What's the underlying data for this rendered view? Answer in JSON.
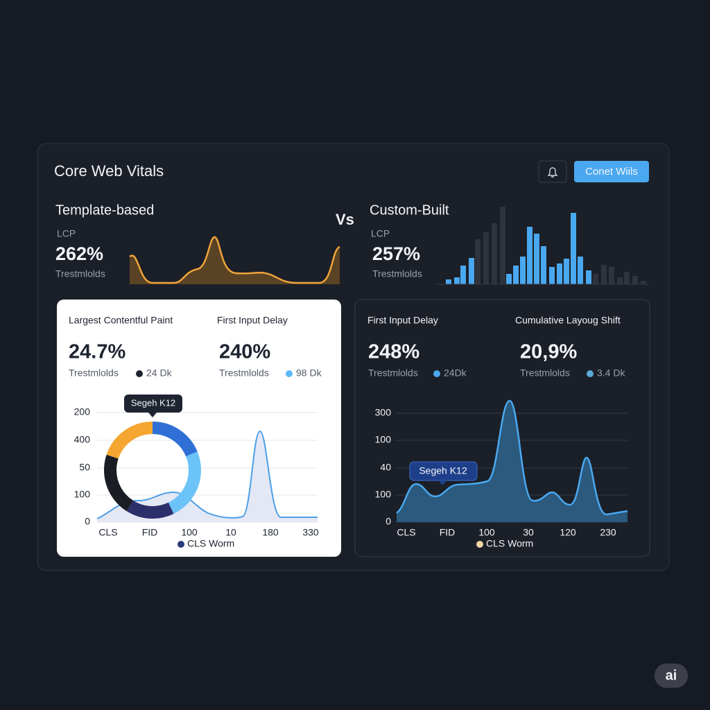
{
  "header": {
    "title": "Core Web Vitals",
    "button": "Conet Wiils"
  },
  "vs": "Vs",
  "left_summary": {
    "title": "Template-based",
    "metric": "LCP",
    "value": "262%",
    "note": "Trestmlolds"
  },
  "right_summary": {
    "title": "Custom-Built",
    "metric": "LCP",
    "value": "257%",
    "note": "Trestmlolds"
  },
  "left_card": {
    "metrics": [
      {
        "label": "Largest Contentful Paint",
        "value": "24.7%",
        "note": "Trestmlolds",
        "legend": "24 Dk"
      },
      {
        "label": "First Input Delay",
        "value": "240%",
        "note": "Trestmlolds",
        "legend": "98 Dk"
      }
    ],
    "tooltip": "Segeh K12",
    "y_labels": [
      "200",
      "400",
      "50",
      "100",
      "0"
    ],
    "x_labels": [
      "CLS",
      "FID",
      "100",
      "10",
      "180",
      "330"
    ],
    "legend": "CLS Worm"
  },
  "right_card": {
    "metrics": [
      {
        "label": "First Input Delay",
        "value": "248%",
        "note": "Trestmlolds",
        "legend": "24Dk"
      },
      {
        "label": "Cumulative Layoug Shift",
        "value": "20,9%",
        "note": "Trestmlolds",
        "legend": "3.4 Dk"
      }
    ],
    "tooltip": "Segeh K12",
    "y_labels": [
      "300",
      "100",
      "40",
      "100",
      "0"
    ],
    "x_labels": [
      "CLS",
      "FID",
      "100",
      "30",
      "120",
      "230"
    ],
    "legend": "CLS Worm"
  },
  "badge": "ai"
}
